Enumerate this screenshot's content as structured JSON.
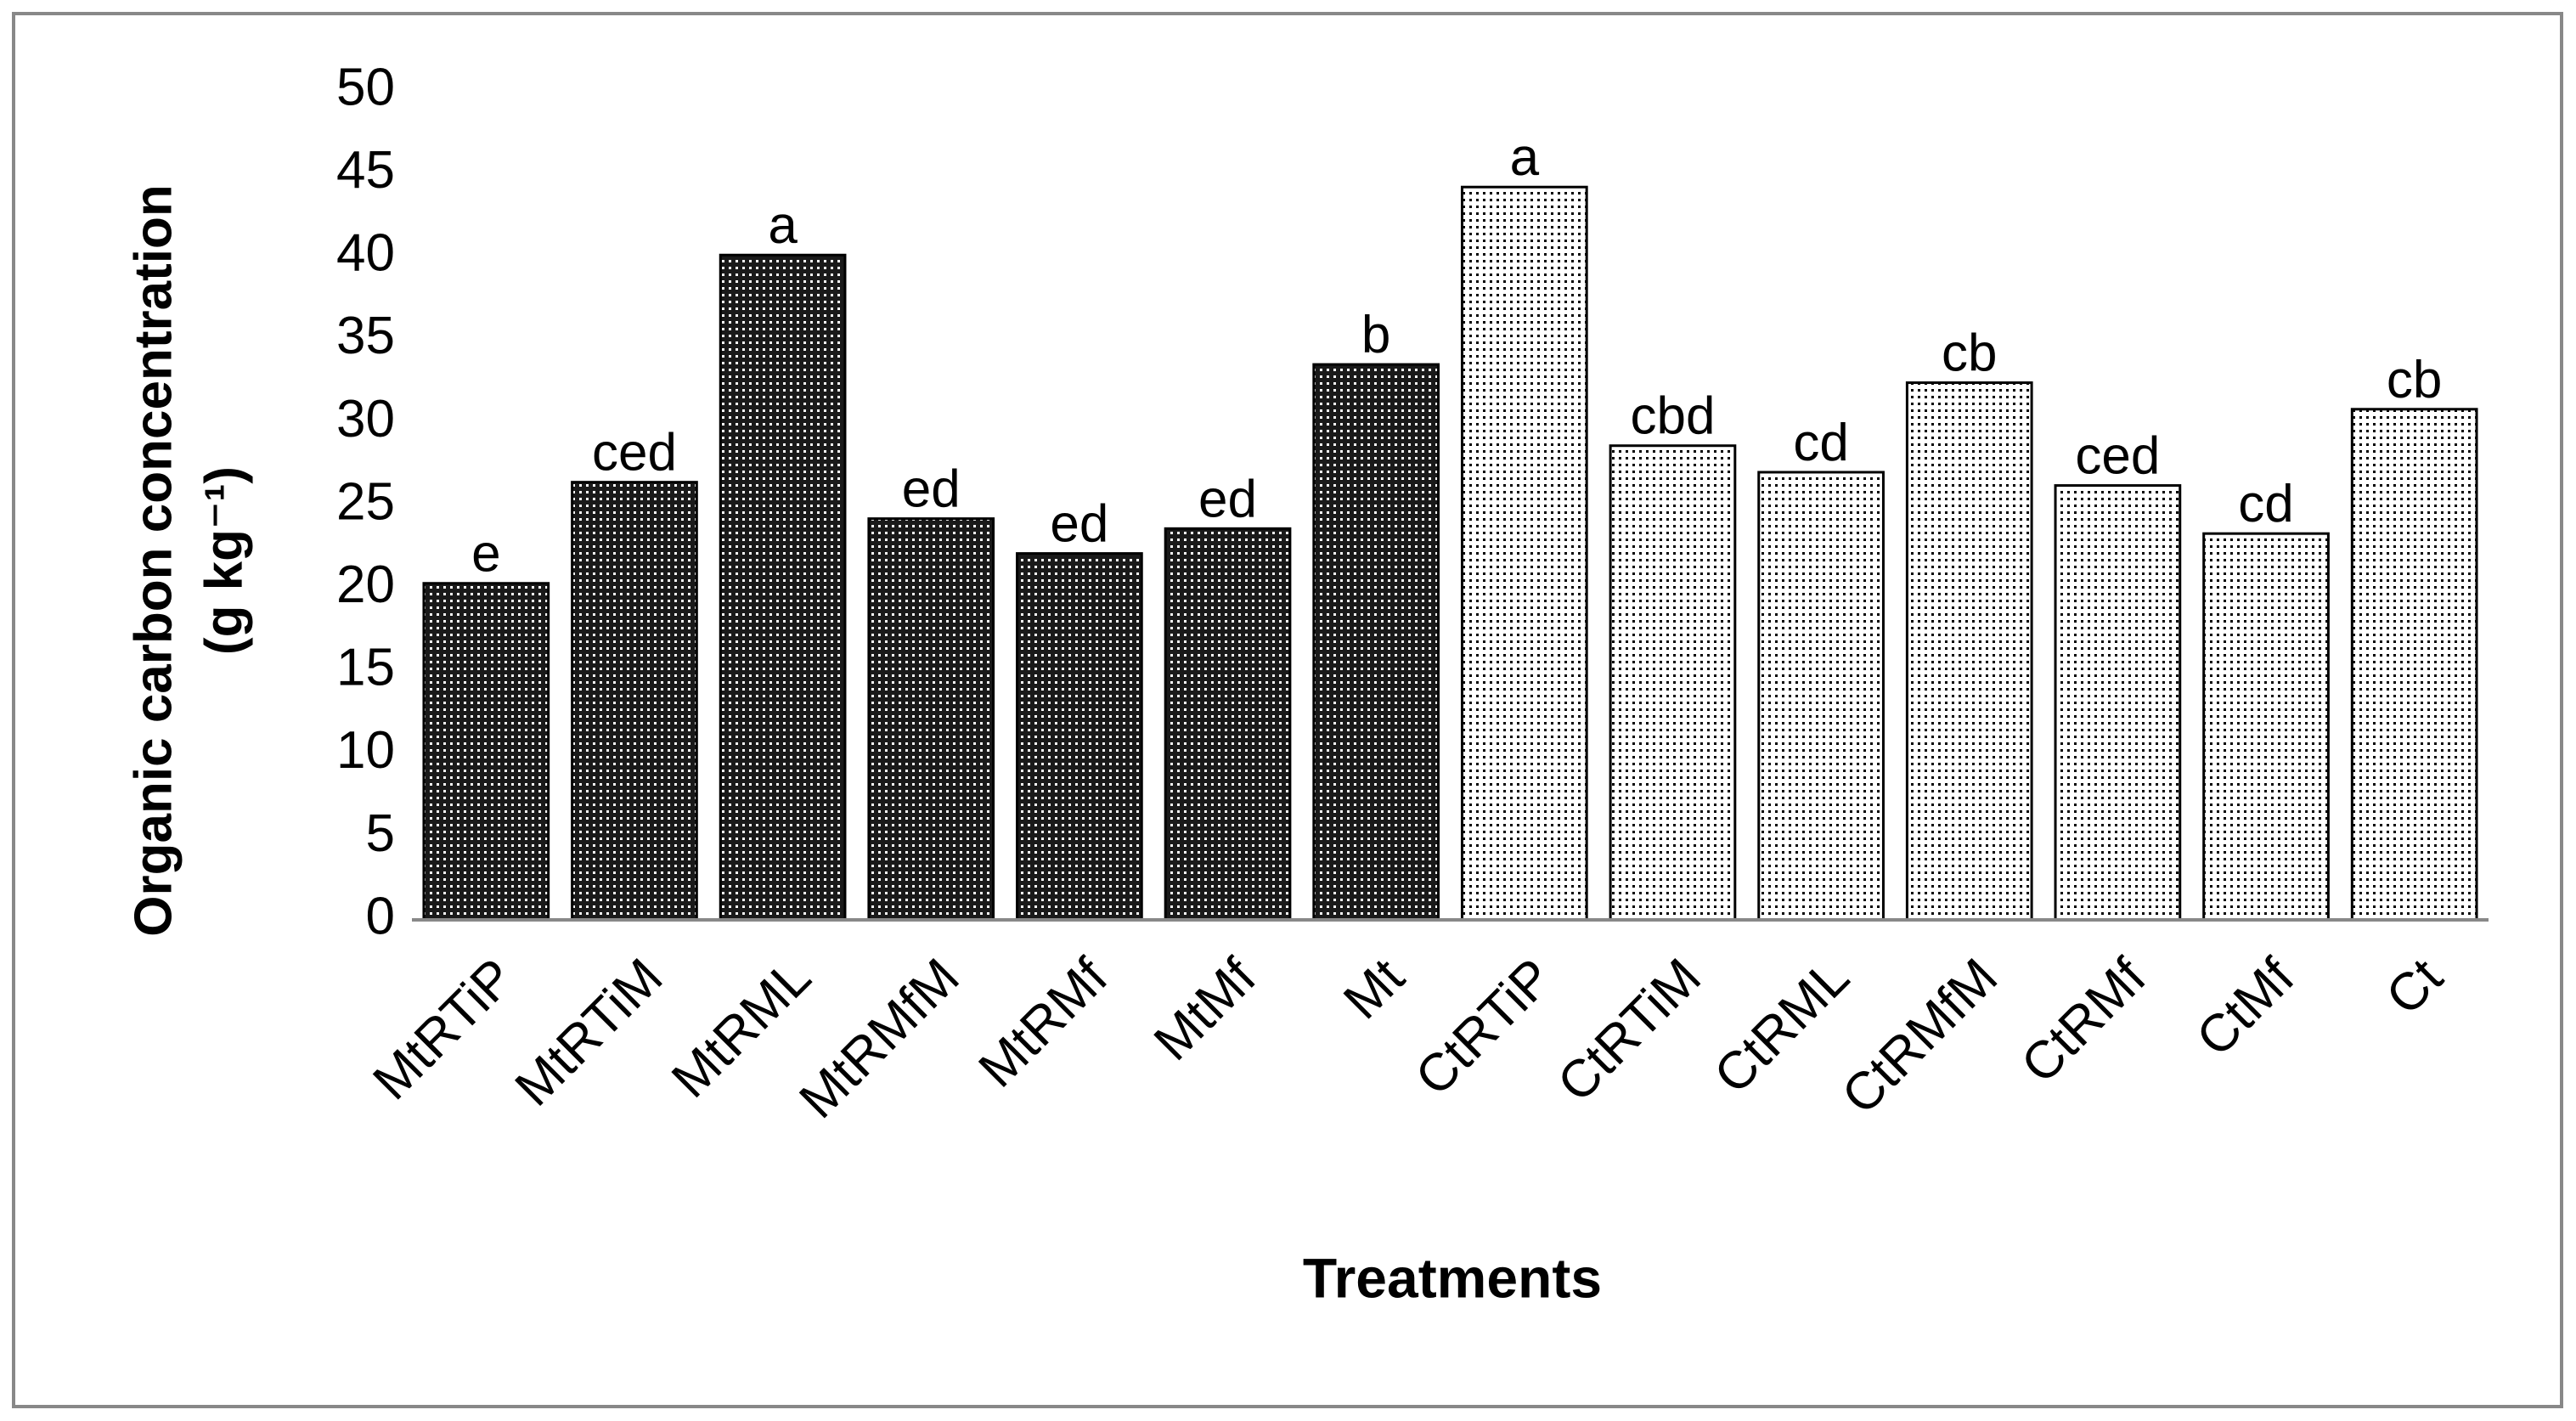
{
  "chart_data": {
    "type": "bar",
    "x_label": "Treatments",
    "y_label": [
      "Organic carbon concentration",
      "(g kg⁻¹)"
    ],
    "categories": [
      "MtRTiP",
      "MtRTiM",
      "MtRML",
      "MtRMfM",
      "MtRMf",
      "MtMf",
      "Mt",
      "CtRTiP",
      "CtRTiM",
      "CtRML",
      "CtRMfM",
      "CtRMf",
      "CtMf",
      "Ct"
    ],
    "values": [
      20.3,
      26.4,
      40.1,
      24.2,
      22.1,
      23.6,
      33.5,
      44.2,
      28.6,
      27.0,
      32.4,
      26.2,
      23.3,
      30.8
    ],
    "letters": [
      "e",
      "ced",
      "a",
      "ed",
      "ed",
      "ed",
      "b",
      "a",
      "cbd",
      "cd",
      "cb",
      "ced",
      "cd",
      "cb"
    ],
    "colors": [
      "#1a1a1a",
      "#1a1a1a",
      "#1a1a1a",
      "#1a1a1a",
      "#1a1a1a",
      "#1a1a1a",
      "#1a1a1a",
      "#ffffff",
      "#ffffff",
      "#ffffff",
      "#ffffff",
      "#ffffff",
      "#ffffff",
      "#ffffff"
    ],
    "ylim": [
      0,
      50
    ],
    "yticks": [
      0,
      5,
      10,
      15,
      20,
      25,
      30,
      35,
      40,
      45,
      50
    ],
    "grid": false
  }
}
